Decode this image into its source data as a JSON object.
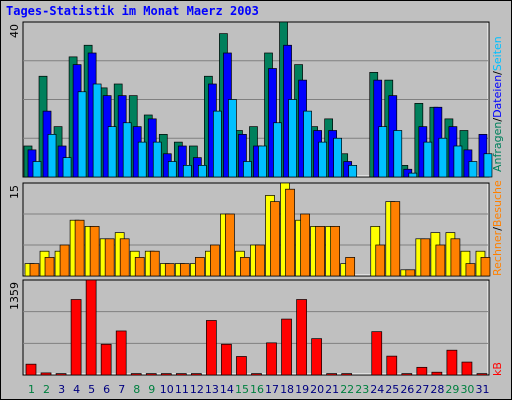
{
  "title": "Tages-Statistik im Monat Maerz 2003",
  "colors": {
    "background": "#c0c0c0",
    "grid": "#808080",
    "weekday": "#000080",
    "weekend": "#008040",
    "anfragen": "#00805c",
    "dateien": "#0000ff",
    "seiten": "#00c0ff",
    "besuche": "#ffff00",
    "rechner": "#ff8000",
    "kb": "#ff0000"
  },
  "chart_data": [
    {
      "type": "bar",
      "panel": "top",
      "ymax_label": "40",
      "legend": [
        {
          "text": "Anfragen",
          "color": "#00805c"
        },
        {
          "text": "/",
          "color": "#000000"
        },
        {
          "text": "Dateien",
          "color": "#0000ff"
        },
        {
          "text": "/",
          "color": "#000000"
        },
        {
          "text": "Seiten",
          "color": "#00c0ff"
        }
      ],
      "categories": [
        1,
        2,
        3,
        4,
        5,
        6,
        7,
        8,
        9,
        10,
        11,
        12,
        13,
        14,
        15,
        16,
        17,
        18,
        19,
        20,
        21,
        22,
        23,
        24,
        25,
        26,
        27,
        28,
        29,
        30,
        31
      ],
      "weekend_days": [
        1,
        2,
        8,
        9,
        15,
        16,
        22,
        23,
        29,
        30
      ],
      "ylim": [
        0,
        40
      ],
      "series": [
        {
          "name": "Anfragen",
          "values": [
            8,
            26,
            13,
            31,
            34,
            23,
            24,
            21,
            16,
            11,
            9,
            8,
            26,
            37,
            12,
            13,
            32,
            41,
            29,
            13,
            15,
            6,
            0,
            27,
            25,
            3,
            19,
            18,
            15,
            12,
            0
          ]
        },
        {
          "name": "Dateien",
          "values": [
            7,
            17,
            8,
            29,
            32,
            21,
            21,
            13,
            15,
            6,
            8,
            5,
            24,
            32,
            11,
            8,
            28,
            34,
            25,
            12,
            12,
            4,
            0,
            25,
            21,
            2,
            13,
            18,
            13,
            7,
            11
          ]
        },
        {
          "name": "Seiten",
          "values": [
            4,
            11,
            5,
            22,
            24,
            13,
            14,
            9,
            9,
            4,
            3,
            3,
            17,
            20,
            4,
            8,
            14,
            20,
            17,
            9,
            10,
            3,
            0,
            13,
            12,
            1,
            9,
            10,
            8,
            4,
            6
          ]
        }
      ]
    },
    {
      "type": "bar",
      "panel": "middle",
      "ymax_label": "15",
      "legend": [
        {
          "text": "Rechner",
          "color": "#ff8000"
        },
        {
          "text": "/",
          "color": "#000000"
        },
        {
          "text": "Besuche",
          "color": "#ff8000"
        }
      ],
      "categories": [
        1,
        2,
        3,
        4,
        5,
        6,
        7,
        8,
        9,
        10,
        11,
        12,
        13,
        14,
        15,
        16,
        17,
        18,
        19,
        20,
        21,
        22,
        23,
        24,
        25,
        26,
        27,
        28,
        29,
        30,
        31
      ],
      "ylim": [
        0,
        15
      ],
      "series": [
        {
          "name": "Besuche",
          "values": [
            2,
            4,
            4,
            9,
            8,
            6,
            7,
            4,
            4,
            2,
            2,
            2,
            4,
            10,
            4,
            5,
            13,
            15,
            9,
            8,
            8,
            2,
            0,
            8,
            12,
            1,
            6,
            7,
            7,
            4,
            4
          ]
        },
        {
          "name": "Rechner",
          "values": [
            2,
            3,
            5,
            9,
            8,
            6,
            6,
            3,
            4,
            2,
            2,
            3,
            5,
            10,
            3,
            5,
            12,
            14,
            10,
            8,
            8,
            3,
            0,
            5,
            12,
            1,
            6,
            5,
            6,
            2,
            3
          ]
        }
      ]
    },
    {
      "type": "bar",
      "panel": "bottom",
      "ymax_label": "1359",
      "legend": [
        {
          "text": "kB",
          "color": "#ff0000"
        }
      ],
      "categories": [
        1,
        2,
        3,
        4,
        5,
        6,
        7,
        8,
        9,
        10,
        11,
        12,
        13,
        14,
        15,
        16,
        17,
        18,
        19,
        20,
        21,
        22,
        23,
        24,
        25,
        26,
        27,
        28,
        29,
        30,
        31
      ],
      "ylim": [
        0,
        1359
      ],
      "series": [
        {
          "name": "kB",
          "values": [
            155,
            30,
            20,
            1080,
            1359,
            440,
            630,
            20,
            20,
            20,
            20,
            20,
            780,
            440,
            265,
            20,
            460,
            800,
            1080,
            520,
            20,
            20,
            0,
            620,
            270,
            20,
            110,
            40,
            355,
            185,
            20
          ]
        }
      ]
    }
  ]
}
